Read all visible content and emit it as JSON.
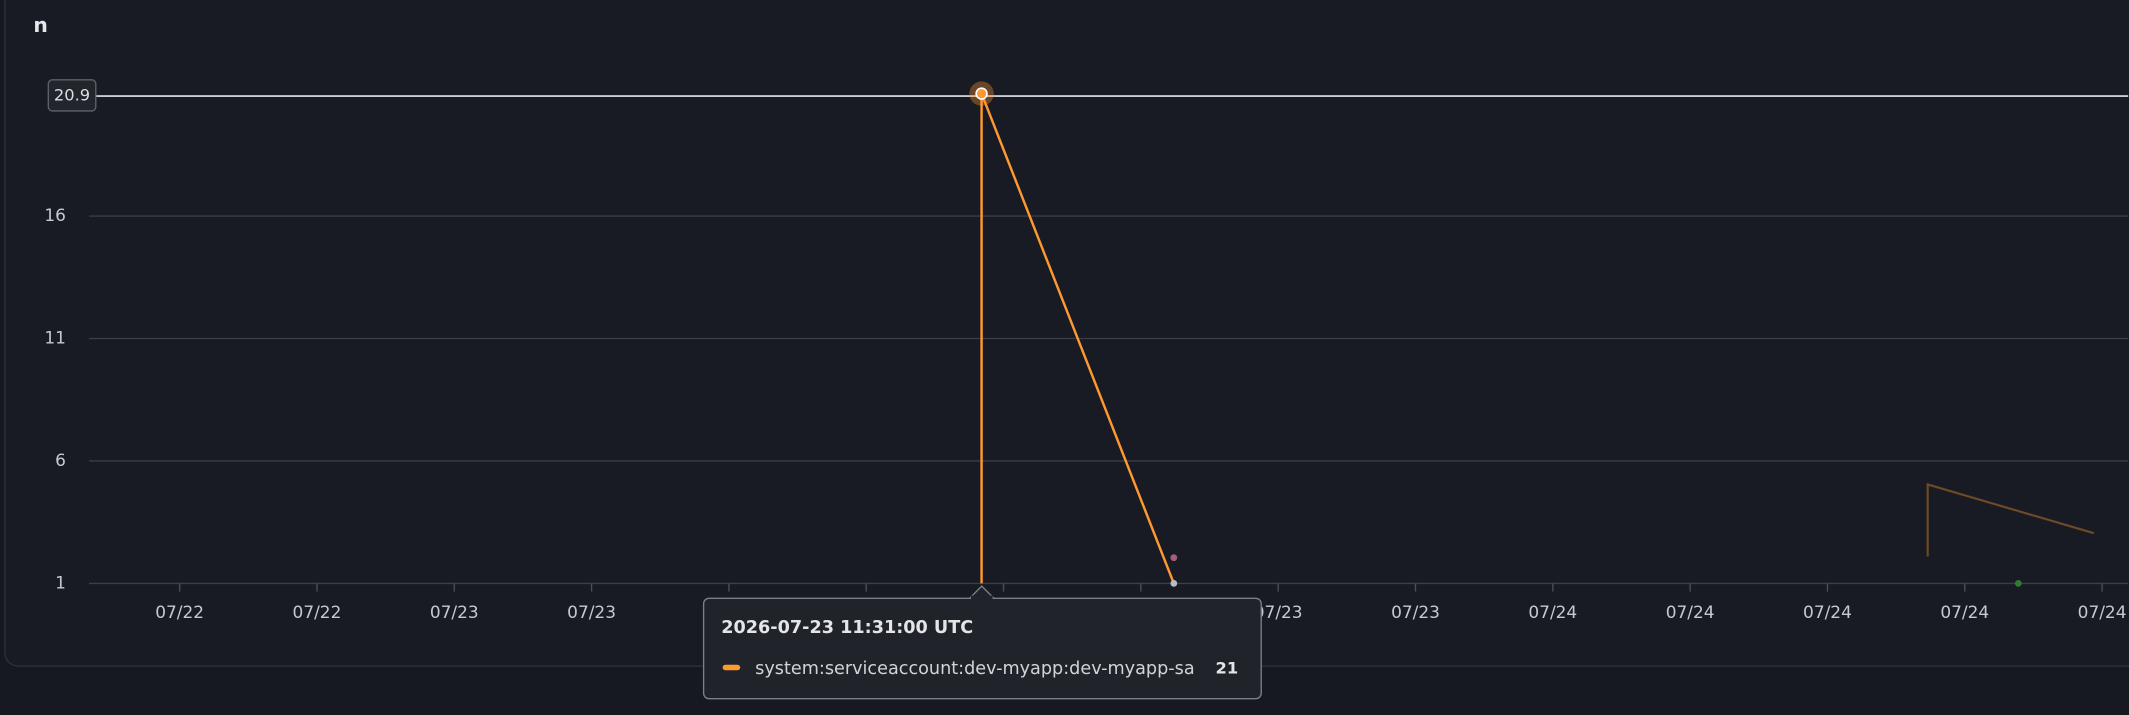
{
  "chart_data": {
    "type": "line",
    "title": "n",
    "categories": [
      "07/22",
      "07/22",
      "07/23",
      "07/23",
      null,
      null,
      null,
      null,
      "07/23",
      "07/23",
      "07/24",
      "07/24",
      "07/24",
      "07/24",
      "07/24"
    ],
    "xlim": [
      -0.66,
      14.19
    ],
    "ylim": [
      1,
      21
    ],
    "yticks": [
      1,
      6,
      11,
      16
    ],
    "grid": true,
    "crosshair": 20.9,
    "series": [
      {
        "name": "system:serviceaccount:dev-myapp:dev-myapp-sa",
        "color": "#ff9830",
        "x": [
          5.84,
          5.84,
          7.24
        ],
        "values": [
          1,
          21,
          1
        ]
      },
      {
        "color": "#6e4a26",
        "x": [
          12.73,
          12.73,
          13.94
        ],
        "values": [
          2.1,
          5.04,
          3.05
        ]
      },
      {
        "color": "#a0607a",
        "x": [
          7.24
        ],
        "values": [
          2.05
        ]
      },
      {
        "color": "#2e7d32",
        "x": [
          13.39
        ],
        "values": [
          1
        ]
      }
    ],
    "tooltip": {
      "time": "2026-07-23 11:31:00 UTC"
    }
  }
}
